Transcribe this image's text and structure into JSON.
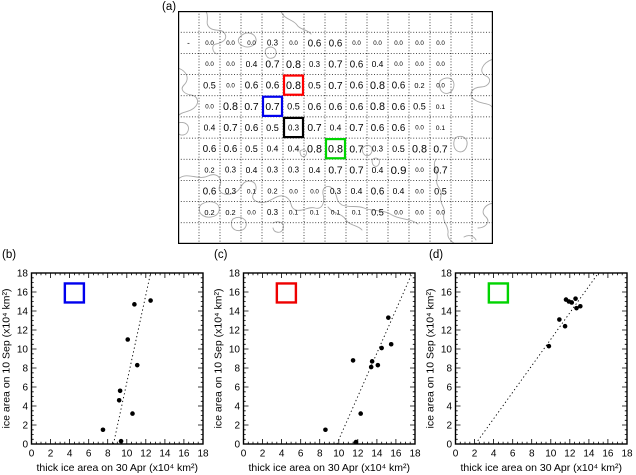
{
  "panel_a": {
    "label": "(a)",
    "grid": {
      "cols": 15,
      "rows": 11
    },
    "colors": {
      "positive": "#e04747",
      "negative": "#3a3ad6",
      "grid_line": "#111111",
      "coastline": "#a9a9a9",
      "box_red": "#ff0000",
      "box_blue": "#0000ee",
      "box_black": "#000000",
      "box_green": "#00d400"
    },
    "cells": [
      {
        "r": 1,
        "c": 0,
        "v": "-"
      },
      {
        "r": 1,
        "c": 1,
        "v": "0.0"
      },
      {
        "r": 1,
        "c": 2,
        "v": "0.0"
      },
      {
        "r": 1,
        "c": 3,
        "v": "0.0",
        "neg": true
      },
      {
        "r": 1,
        "c": 4,
        "v": "0.3"
      },
      {
        "r": 1,
        "c": 5,
        "v": "0.0"
      },
      {
        "r": 1,
        "c": 6,
        "v": "0.6"
      },
      {
        "r": 1,
        "c": 7,
        "v": "0.6"
      },
      {
        "r": 1,
        "c": 8,
        "v": "0.0"
      },
      {
        "r": 1,
        "c": 9,
        "v": "0.0"
      },
      {
        "r": 1,
        "c": 10,
        "v": "0.0"
      },
      {
        "r": 1,
        "c": 11,
        "v": "0.0"
      },
      {
        "r": 1,
        "c": 12,
        "v": "0.0"
      },
      {
        "r": 2,
        "c": 1,
        "v": "0.0"
      },
      {
        "r": 2,
        "c": 2,
        "v": "0.0"
      },
      {
        "r": 2,
        "c": 3,
        "v": "0.4"
      },
      {
        "r": 2,
        "c": 4,
        "v": "0.7"
      },
      {
        "r": 2,
        "c": 5,
        "v": "0.8"
      },
      {
        "r": 2,
        "c": 6,
        "v": "0.3"
      },
      {
        "r": 2,
        "c": 7,
        "v": "0.7"
      },
      {
        "r": 2,
        "c": 8,
        "v": "0.6"
      },
      {
        "r": 2,
        "c": 9,
        "v": "0.4"
      },
      {
        "r": 2,
        "c": 10,
        "v": "0.0"
      },
      {
        "r": 2,
        "c": 11,
        "v": "0.0"
      },
      {
        "r": 2,
        "c": 12,
        "v": "0.0"
      },
      {
        "r": 3,
        "c": 1,
        "v": "0.5"
      },
      {
        "r": 3,
        "c": 2,
        "v": "0.0"
      },
      {
        "r": 3,
        "c": 3,
        "v": "0.6"
      },
      {
        "r": 3,
        "c": 4,
        "v": "0.6"
      },
      {
        "r": 3,
        "c": 5,
        "v": "0.8"
      },
      {
        "r": 3,
        "c": 6,
        "v": "0.5"
      },
      {
        "r": 3,
        "c": 7,
        "v": "0.7"
      },
      {
        "r": 3,
        "c": 8,
        "v": "0.6"
      },
      {
        "r": 3,
        "c": 9,
        "v": "0.8"
      },
      {
        "r": 3,
        "c": 10,
        "v": "0.6"
      },
      {
        "r": 3,
        "c": 11,
        "v": "0.2"
      },
      {
        "r": 3,
        "c": 12,
        "v": "0.0"
      },
      {
        "r": 4,
        "c": 1,
        "v": "0.0"
      },
      {
        "r": 4,
        "c": 2,
        "v": "0.8"
      },
      {
        "r": 4,
        "c": 3,
        "v": "0.7"
      },
      {
        "r": 4,
        "c": 4,
        "v": "0.7"
      },
      {
        "r": 4,
        "c": 5,
        "v": "0.5"
      },
      {
        "r": 4,
        "c": 6,
        "v": "0.6"
      },
      {
        "r": 4,
        "c": 7,
        "v": "0.6"
      },
      {
        "r": 4,
        "c": 8,
        "v": "0.6"
      },
      {
        "r": 4,
        "c": 9,
        "v": "0.8"
      },
      {
        "r": 4,
        "c": 10,
        "v": "0.6"
      },
      {
        "r": 4,
        "c": 11,
        "v": "0.5"
      },
      {
        "r": 4,
        "c": 12,
        "v": "0.1"
      },
      {
        "r": 5,
        "c": 1,
        "v": "0.4"
      },
      {
        "r": 5,
        "c": 2,
        "v": "0.7"
      },
      {
        "r": 5,
        "c": 3,
        "v": "0.6"
      },
      {
        "r": 5,
        "c": 4,
        "v": "0.5"
      },
      {
        "r": 5,
        "c": 5,
        "v": "0.3"
      },
      {
        "r": 5,
        "c": 6,
        "v": "0.7"
      },
      {
        "r": 5,
        "c": 7,
        "v": "0.4"
      },
      {
        "r": 5,
        "c": 8,
        "v": "0.7"
      },
      {
        "r": 5,
        "c": 9,
        "v": "0.6"
      },
      {
        "r": 5,
        "c": 10,
        "v": "0.6"
      },
      {
        "r": 5,
        "c": 11,
        "v": "0.0"
      },
      {
        "r": 5,
        "c": 12,
        "v": "0.1",
        "neg": true
      },
      {
        "r": 6,
        "c": 1,
        "v": "0.6"
      },
      {
        "r": 6,
        "c": 2,
        "v": "0.6"
      },
      {
        "r": 6,
        "c": 3,
        "v": "0.5"
      },
      {
        "r": 6,
        "c": 4,
        "v": "0.4"
      },
      {
        "r": 6,
        "c": 5,
        "v": "0.4"
      },
      {
        "r": 6,
        "c": 6,
        "v": "0.8"
      },
      {
        "r": 6,
        "c": 7,
        "v": "0.8"
      },
      {
        "r": 6,
        "c": 8,
        "v": "0.7"
      },
      {
        "r": 6,
        "c": 9,
        "v": "0.3"
      },
      {
        "r": 6,
        "c": 10,
        "v": "0.5"
      },
      {
        "r": 6,
        "c": 11,
        "v": "0.8"
      },
      {
        "r": 6,
        "c": 12,
        "v": "0.7"
      },
      {
        "r": 7,
        "c": 1,
        "v": "0.2"
      },
      {
        "r": 7,
        "c": 2,
        "v": "0.3"
      },
      {
        "r": 7,
        "c": 3,
        "v": "0.4"
      },
      {
        "r": 7,
        "c": 4,
        "v": "0.3"
      },
      {
        "r": 7,
        "c": 5,
        "v": "0.3"
      },
      {
        "r": 7,
        "c": 6,
        "v": "0.4"
      },
      {
        "r": 7,
        "c": 7,
        "v": "0.7"
      },
      {
        "r": 7,
        "c": 8,
        "v": "0.7"
      },
      {
        "r": 7,
        "c": 9,
        "v": "0.4"
      },
      {
        "r": 7,
        "c": 10,
        "v": "0.9"
      },
      {
        "r": 7,
        "c": 11,
        "v": "0.0"
      },
      {
        "r": 7,
        "c": 12,
        "v": "0.7"
      },
      {
        "r": 8,
        "c": 1,
        "v": "0.6"
      },
      {
        "r": 8,
        "c": 2,
        "v": "0.3"
      },
      {
        "r": 8,
        "c": 3,
        "v": "0.1"
      },
      {
        "r": 8,
        "c": 4,
        "v": "0.2",
        "neg": true
      },
      {
        "r": 8,
        "c": 5,
        "v": "0.0",
        "neg": true
      },
      {
        "r": 8,
        "c": 6,
        "v": "0.0"
      },
      {
        "r": 8,
        "c": 7,
        "v": "0.3"
      },
      {
        "r": 8,
        "c": 8,
        "v": "0.4"
      },
      {
        "r": 8,
        "c": 9,
        "v": "0.6"
      },
      {
        "r": 8,
        "c": 10,
        "v": "0.4"
      },
      {
        "r": 8,
        "c": 11,
        "v": "0.0"
      },
      {
        "r": 8,
        "c": 12,
        "v": "0.5"
      },
      {
        "r": 9,
        "c": 1,
        "v": "0.2"
      },
      {
        "r": 9,
        "c": 2,
        "v": "0.2",
        "neg": true
      },
      {
        "r": 9,
        "c": 3,
        "v": "0.0",
        "neg": true
      },
      {
        "r": 9,
        "c": 4,
        "v": "0.3",
        "neg": true
      },
      {
        "r": 9,
        "c": 5,
        "v": "0.1",
        "neg": true
      },
      {
        "r": 9,
        "c": 6,
        "v": "0.1",
        "neg": true
      },
      {
        "r": 9,
        "c": 7,
        "v": "0.1"
      },
      {
        "r": 9,
        "c": 8,
        "v": "0.1"
      },
      {
        "r": 9,
        "c": 9,
        "v": "0.5"
      },
      {
        "r": 9,
        "c": 10,
        "v": "0.0"
      },
      {
        "r": 9,
        "c": 11,
        "v": "0.0"
      },
      {
        "r": 9,
        "c": 12,
        "v": "0.0"
      }
    ],
    "boxes": [
      {
        "name": "red-box",
        "r": 3,
        "c": 5,
        "color": "#ff0000"
      },
      {
        "name": "blue-box",
        "r": 4,
        "c": 4,
        "color": "#0000ee"
      },
      {
        "name": "black-box",
        "r": 5,
        "c": 5,
        "color": "#000000"
      },
      {
        "name": "green-box",
        "r": 6,
        "c": 7,
        "color": "#00d400"
      }
    ]
  },
  "scatter_common": {
    "xlabel": "thick ice area on 30 Apr (x10⁴ km²)",
    "ylabel": "ice area on 10 Sep (x10⁴ km²)",
    "xlim": [
      0,
      18
    ],
    "ylim": [
      0,
      18
    ],
    "major_ticks": [
      0,
      2,
      4,
      6,
      8,
      10,
      12,
      14,
      16,
      18
    ],
    "minor_tick_step": 0.5
  },
  "chart_data": [
    {
      "id": "b",
      "label": "(b)",
      "type": "scatter",
      "xlabel": "thick ice area on 30 Apr (x10⁴ km²)",
      "ylabel": "ice area on 10 Sep (x10⁴ km²)",
      "xlim": [
        0,
        18
      ],
      "ylim": [
        0,
        18
      ],
      "points": [
        [
          12.5,
          15.1
        ],
        [
          10.8,
          14.7
        ],
        [
          10.1,
          11.0
        ],
        [
          11.1,
          8.3
        ],
        [
          9.3,
          5.6
        ],
        [
          9.2,
          4.6
        ],
        [
          10.6,
          3.2
        ],
        [
          7.5,
          1.5
        ],
        [
          9.4,
          0.3
        ]
      ],
      "trend_line": {
        "x1": 8.6,
        "y1": 0,
        "x2": 12.5,
        "y2": 18
      },
      "legend_square": {
        "x": 3.5,
        "y": 14.9,
        "size": 2,
        "color": "#0000ee"
      }
    },
    {
      "id": "c",
      "label": "(c)",
      "type": "scatter",
      "xlabel": "thick ice area on 30 Apr (x10⁴ km²)",
      "ylabel": "ice area on 10 Sep (x10⁴ km²)",
      "xlim": [
        0,
        18
      ],
      "ylim": [
        0,
        18
      ],
      "points": [
        [
          15.2,
          13.3
        ],
        [
          15.5,
          10.5
        ],
        [
          14.5,
          10.1
        ],
        [
          11.5,
          8.8
        ],
        [
          13.5,
          8.7
        ],
        [
          13.4,
          8.1
        ],
        [
          14.1,
          8.3
        ],
        [
          12.3,
          3.2
        ],
        [
          8.6,
          1.5
        ],
        [
          11.8,
          0.2
        ]
      ],
      "trend_line": {
        "x1": 9.8,
        "y1": 0,
        "x2": 17.7,
        "y2": 18
      },
      "legend_square": {
        "x": 3.5,
        "y": 14.9,
        "size": 2,
        "color": "#ee0000"
      }
    },
    {
      "id": "d",
      "label": "(d)",
      "type": "scatter",
      "xlabel": "thick ice area on 30 Apr (x10⁴ km²)",
      "ylabel": "ice area on 10 Sep (x10⁴ km²)",
      "xlim": [
        0,
        18
      ],
      "ylim": [
        0,
        18
      ],
      "points": [
        [
          9.8,
          10.3
        ],
        [
          10.9,
          13.1
        ],
        [
          11.5,
          12.4
        ],
        [
          11.6,
          15.2
        ],
        [
          11.9,
          15.0
        ],
        [
          12.2,
          14.9
        ],
        [
          12.6,
          15.3
        ],
        [
          12.7,
          14.3
        ],
        [
          13.1,
          14.5
        ]
      ],
      "trend_line": {
        "x1": 2.1,
        "y1": 0,
        "x2": 15.0,
        "y2": 18
      },
      "legend_square": {
        "x": 3.5,
        "y": 14.9,
        "size": 2,
        "color": "#00d400"
      }
    }
  ]
}
